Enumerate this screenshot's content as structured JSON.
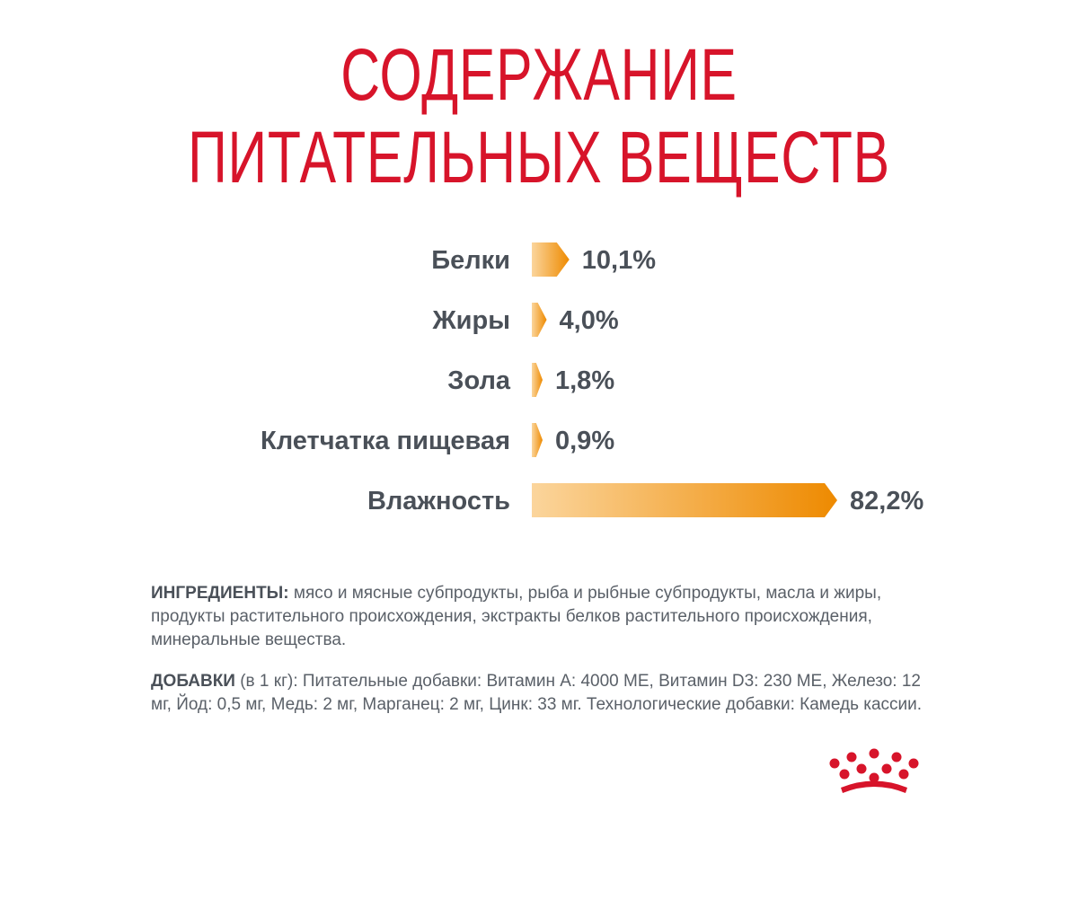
{
  "title": {
    "line1": "СОДЕРЖАНИЕ",
    "line2": "ПИТАТЕЛЬНЫХ ВЕЩЕСТВ"
  },
  "chart_data": {
    "type": "bar",
    "orientation": "horizontal",
    "categories": [
      "Белки",
      "Жиры",
      "Зола",
      "Клетчатка пищевая",
      "Влажность"
    ],
    "values": [
      10.1,
      4.0,
      1.8,
      0.9,
      82.2
    ],
    "value_labels": [
      "10,1%",
      "4,0%",
      "1,8%",
      "0,9%",
      "82,2%"
    ],
    "unit": "%",
    "colors": {
      "bar_start": "#fbd59c",
      "bar_end": "#ee8a00",
      "label": "#4a5058"
    }
  },
  "ingredients": {
    "label": "ИНГРЕДИЕНТЫ:",
    "text": " мясо и мясные субпродукты, рыба и рыбные субпродукты, масла и жиры, продукты растительного происхождения, экстракты белков растительного происхождения, минеральные вещества."
  },
  "additives": {
    "label": "ДОБАВКИ",
    "text": " (в 1 кг): Питательные добавки: Витамин А: 4000 МЕ, Витамин D3: 230 МЕ, Железо: 12 мг, Йод: 0,5 мг, Медь: 2 мг, Марганец: 2 мг, Цинк: 33 мг. Технологические добавки: Камедь кассии."
  },
  "logo": {
    "icon": "crown-icon",
    "color": "#d7142a"
  }
}
